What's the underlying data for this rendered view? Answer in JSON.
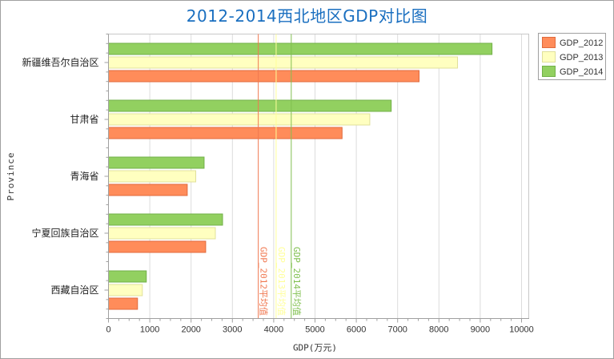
{
  "chart_data": {
    "type": "bar",
    "orientation": "horizontal",
    "title": "2012-2014西北地区GDP对比图",
    "xlabel": "GDP(万元)",
    "ylabel": "Province",
    "xlim": [
      0,
      10000
    ],
    "xticks": [
      0,
      1000,
      2000,
      3000,
      4000,
      5000,
      6000,
      7000,
      8000,
      9000,
      10000
    ],
    "grid": true,
    "legend_position": "top-right",
    "categories": [
      "新疆维吾尔自治区",
      "甘肃省",
      "青海省",
      "宁夏回族自治区",
      "西藏自治区"
    ],
    "series": [
      {
        "name": "GDP_2012",
        "color": "#ff8c5a",
        "border": "#e06a3c",
        "values": [
          7519,
          5655,
          1907,
          2353,
          703
        ]
      },
      {
        "name": "GDP_2013",
        "color": "#ffffc0",
        "border": "#e0e09a",
        "values": [
          8450,
          6326,
          2113,
          2587,
          820
        ]
      },
      {
        "name": "GDP_2014",
        "color": "#92d060",
        "border": "#72b048",
        "values": [
          9285,
          6845,
          2315,
          2762,
          916
        ]
      }
    ],
    "reference_lines": [
      {
        "label": "GDP_2012平均值",
        "value": 3627,
        "color": "#f07850"
      },
      {
        "label": "GDP_2013平均值",
        "value": 4059,
        "color": "#ffff99"
      },
      {
        "label": "GDP_2014平均值",
        "value": 4425,
        "color": "#80c050"
      }
    ]
  }
}
